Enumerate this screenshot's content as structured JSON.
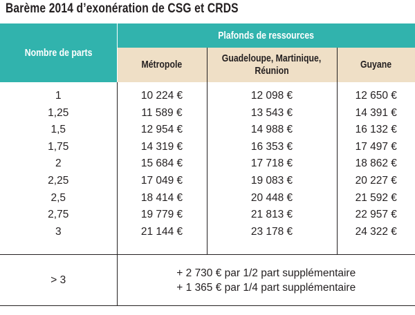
{
  "title": "Barème 2014 d’exonération de CSG et CRDS",
  "header": {
    "parts_label": "Nombre de parts",
    "ceilings_label": "Plafonds de ressources",
    "regions": [
      "Métropole",
      "Guadeloupe, Martinique,",
      "Réunion",
      "Guyane"
    ]
  },
  "rows": {
    "parts": [
      "1",
      "1,25",
      "1,5",
      "1,75",
      "2",
      "2,25",
      "2,5",
      "2,75",
      "3"
    ],
    "metropole": [
      "10 224 €",
      "11 589 €",
      "12 954 €",
      "14 319 €",
      "15 684 €",
      "17 049 €",
      "18 414 €",
      "19 779 €",
      "21 144 €"
    ],
    "gmr": [
      "12 098 €",
      "13 543 €",
      "14 988 €",
      "16 353 €",
      "17 718 €",
      "19 083 €",
      "20 448 €",
      "21 813 €",
      "23 178 €"
    ],
    "guyane": [
      "12 650 €",
      "14 391 €",
      "16 132 €",
      "17 497 €",
      "18 862 €",
      "20 227 €",
      "21 592 €",
      "22 957 €",
      "24 322 €"
    ]
  },
  "extra": {
    "parts": "> 3",
    "line1": "+ 2 730 € par 1/2 part supplémentaire",
    "line2": "+ 1 365 € par 1/4 part supplémentaire"
  }
}
